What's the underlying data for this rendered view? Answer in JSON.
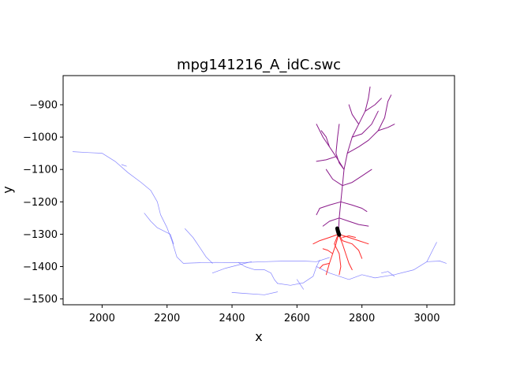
{
  "chart_data": {
    "type": "line",
    "title": "mpg141216_A_idC.swc",
    "xlabel": "x",
    "ylabel": "y",
    "xlim": [
      1880,
      3085
    ],
    "ylim": [
      -1518,
      -810
    ],
    "xticks": [
      2000,
      2200,
      2400,
      2600,
      2800,
      3000
    ],
    "yticks": [
      -900,
      -1000,
      -1100,
      -1200,
      -1300,
      -1400,
      -1500
    ],
    "xtick_labels": [
      "2000",
      "2200",
      "2400",
      "2600",
      "2800",
      "3000"
    ],
    "ytick_labels": [
      "−900",
      "−1000",
      "−1100",
      "−1200",
      "−1300",
      "−1400",
      "−1500"
    ],
    "grid": false,
    "colors": {
      "axon": "#5b5bff",
      "basal_dendrite": "#ff2a2a",
      "apical_dendrite": "#8a1a8a",
      "soma": "#000000"
    },
    "series": [
      {
        "key": "axon",
        "paths": [
          [
            [
              1910,
              -1045
            ],
            [
              1960,
              -1048
            ],
            [
              2000,
              -1050
            ],
            [
              2040,
              -1075
            ],
            [
              2080,
              -1110
            ],
            [
              2120,
              -1140
            ],
            [
              2150,
              -1165
            ],
            [
              2170,
              -1200
            ],
            [
              2180,
              -1240
            ],
            [
              2200,
              -1280
            ],
            [
              2215,
              -1320
            ],
            [
              2230,
              -1370
            ],
            [
              2250,
              -1390
            ],
            [
              2300,
              -1388
            ],
            [
              2350,
              -1387
            ],
            [
              2420,
              -1388
            ],
            [
              2500,
              -1385
            ],
            [
              2560,
              -1383
            ],
            [
              2620,
              -1383
            ],
            [
              2660,
              -1385
            ],
            [
              2700,
              -1372
            ]
          ],
          [
            [
              2060,
              -1085
            ],
            [
              2075,
              -1090
            ]
          ],
          [
            [
              2130,
              -1235
            ],
            [
              2150,
              -1260
            ],
            [
              2170,
              -1280
            ],
            [
              2190,
              -1290
            ],
            [
              2210,
              -1300
            ],
            [
              2220,
              -1330
            ]
          ],
          [
            [
              2255,
              -1283
            ],
            [
              2280,
              -1310
            ],
            [
              2300,
              -1340
            ],
            [
              2320,
              -1370
            ],
            [
              2340,
              -1390
            ]
          ],
          [
            [
              2340,
              -1420
            ],
            [
              2380,
              -1405
            ],
            [
              2420,
              -1395
            ],
            [
              2460,
              -1385
            ]
          ],
          [
            [
              2420,
              -1388
            ],
            [
              2440,
              -1400
            ],
            [
              2470,
              -1410
            ],
            [
              2500,
              -1410
            ],
            [
              2520,
              -1420
            ],
            [
              2530,
              -1440
            ],
            [
              2540,
              -1452
            ]
          ],
          [
            [
              2400,
              -1480
            ],
            [
              2440,
              -1483
            ],
            [
              2500,
              -1487
            ],
            [
              2540,
              -1478
            ]
          ],
          [
            [
              2540,
              -1452
            ],
            [
              2580,
              -1458
            ],
            [
              2620,
              -1450
            ],
            [
              2650,
              -1430
            ],
            [
              2660,
              -1400
            ],
            [
              2670,
              -1380
            ]
          ],
          [
            [
              2600,
              -1440
            ],
            [
              2620,
              -1470
            ]
          ],
          [
            [
              2660,
              -1400
            ],
            [
              2700,
              -1420
            ],
            [
              2760,
              -1440
            ],
            [
              2800,
              -1425
            ],
            [
              2840,
              -1435
            ],
            [
              2900,
              -1425
            ],
            [
              2960,
              -1410
            ],
            [
              3000,
              -1385
            ],
            [
              3020,
              -1345
            ],
            [
              3030,
              -1325
            ]
          ],
          [
            [
              3000,
              -1385
            ],
            [
              3040,
              -1383
            ],
            [
              3060,
              -1390
            ]
          ],
          [
            [
              2900,
              -1430
            ],
            [
              2880,
              -1415
            ],
            [
              2860,
              -1420
            ]
          ]
        ]
      },
      {
        "key": "basal_dendrite",
        "paths": [
          [
            [
              2728,
              -1300
            ],
            [
              2720,
              -1330
            ],
            [
              2710,
              -1360
            ],
            [
              2700,
              -1390
            ],
            [
              2690,
              -1425
            ]
          ],
          [
            [
              2728,
              -1300
            ],
            [
              2740,
              -1330
            ],
            [
              2750,
              -1360
            ],
            [
              2760,
              -1390
            ],
            [
              2770,
              -1410
            ]
          ],
          [
            [
              2728,
              -1300
            ],
            [
              2700,
              -1310
            ],
            [
              2670,
              -1320
            ],
            [
              2650,
              -1330
            ]
          ],
          [
            [
              2728,
              -1300
            ],
            [
              2760,
              -1310
            ],
            [
              2790,
              -1320
            ],
            [
              2820,
              -1330
            ]
          ],
          [
            [
              2730,
              -1300
            ],
            [
              2740,
              -1320
            ],
            [
              2770,
              -1330
            ],
            [
              2790,
              -1350
            ],
            [
              2800,
              -1375
            ]
          ],
          [
            [
              2725,
              -1305
            ],
            [
              2715,
              -1330
            ],
            [
              2730,
              -1360
            ],
            [
              2735,
              -1400
            ],
            [
              2730,
              -1425
            ]
          ],
          [
            [
              2700,
              -1390
            ],
            [
              2680,
              -1395
            ],
            [
              2670,
              -1405
            ]
          ],
          [
            [
              2740,
              -1310
            ],
            [
              2760,
              -1305
            ],
            [
              2780,
              -1310
            ]
          ],
          [
            [
              2710,
              -1360
            ],
            [
              2695,
              -1350
            ],
            [
              2680,
              -1345
            ]
          ]
        ]
      },
      {
        "key": "apical_dendrite",
        "paths": [
          [
            [
              2728,
              -1290
            ],
            [
              2730,
              -1250
            ],
            [
              2735,
              -1200
            ],
            [
              2740,
              -1150
            ],
            [
              2745,
              -1100
            ],
            [
              2755,
              -1050
            ],
            [
              2770,
              -1000
            ],
            [
              2790,
              -960
            ],
            [
              2810,
              -920
            ],
            [
              2820,
              -880
            ],
            [
              2825,
              -845
            ]
          ],
          [
            [
              2745,
              -1100
            ],
            [
              2720,
              -1060
            ],
            [
              2700,
              -1030
            ],
            [
              2680,
              -1000
            ],
            [
              2660,
              -960
            ]
          ],
          [
            [
              2755,
              -1050
            ],
            [
              2790,
              -1030
            ],
            [
              2820,
              -1010
            ],
            [
              2850,
              -980
            ],
            [
              2870,
              -940
            ],
            [
              2880,
              -890
            ],
            [
              2890,
              -870
            ]
          ],
          [
            [
              2770,
              -1000
            ],
            [
              2800,
              -990
            ],
            [
              2830,
              -960
            ],
            [
              2850,
              -920
            ]
          ],
          [
            [
              2735,
              -1200
            ],
            [
              2700,
              -1210
            ],
            [
              2670,
              -1220
            ],
            [
              2660,
              -1240
            ]
          ],
          [
            [
              2735,
              -1200
            ],
            [
              2770,
              -1210
            ],
            [
              2800,
              -1220
            ],
            [
              2815,
              -1230
            ]
          ],
          [
            [
              2730,
              -1250
            ],
            [
              2700,
              -1260
            ],
            [
              2680,
              -1275
            ]
          ],
          [
            [
              2730,
              -1250
            ],
            [
              2760,
              -1260
            ],
            [
              2790,
              -1270
            ],
            [
              2820,
              -1275
            ]
          ],
          [
            [
              2740,
              -1150
            ],
            [
              2770,
              -1140
            ],
            [
              2800,
              -1120
            ],
            [
              2830,
              -1100
            ]
          ],
          [
            [
              2740,
              -1150
            ],
            [
              2710,
              -1130
            ],
            [
              2690,
              -1100
            ]
          ],
          [
            [
              2790,
              -960
            ],
            [
              2770,
              -930
            ],
            [
              2760,
              -900
            ]
          ],
          [
            [
              2810,
              -920
            ],
            [
              2840,
              -900
            ],
            [
              2860,
              -880
            ]
          ],
          [
            [
              2700,
              -1030
            ],
            [
              2690,
              -1000
            ],
            [
              2675,
              -980
            ]
          ],
          [
            [
              2850,
              -980
            ],
            [
              2880,
              -970
            ],
            [
              2900,
              -960
            ]
          ],
          [
            [
              2720,
              -1060
            ],
            [
              2690,
              -1070
            ],
            [
              2660,
              -1075
            ]
          ],
          [
            [
              2745,
              -1100
            ],
            [
              2730,
              -1080
            ],
            [
              2720,
              -1050
            ],
            [
              2725,
              -1000
            ],
            [
              2730,
              -960
            ]
          ]
        ]
      },
      {
        "key": "soma",
        "paths": [
          [
            [
              2724,
              -1282
            ],
            [
              2726,
              -1290
            ],
            [
              2728,
              -1297
            ],
            [
              2730,
              -1302
            ]
          ]
        ]
      }
    ]
  }
}
